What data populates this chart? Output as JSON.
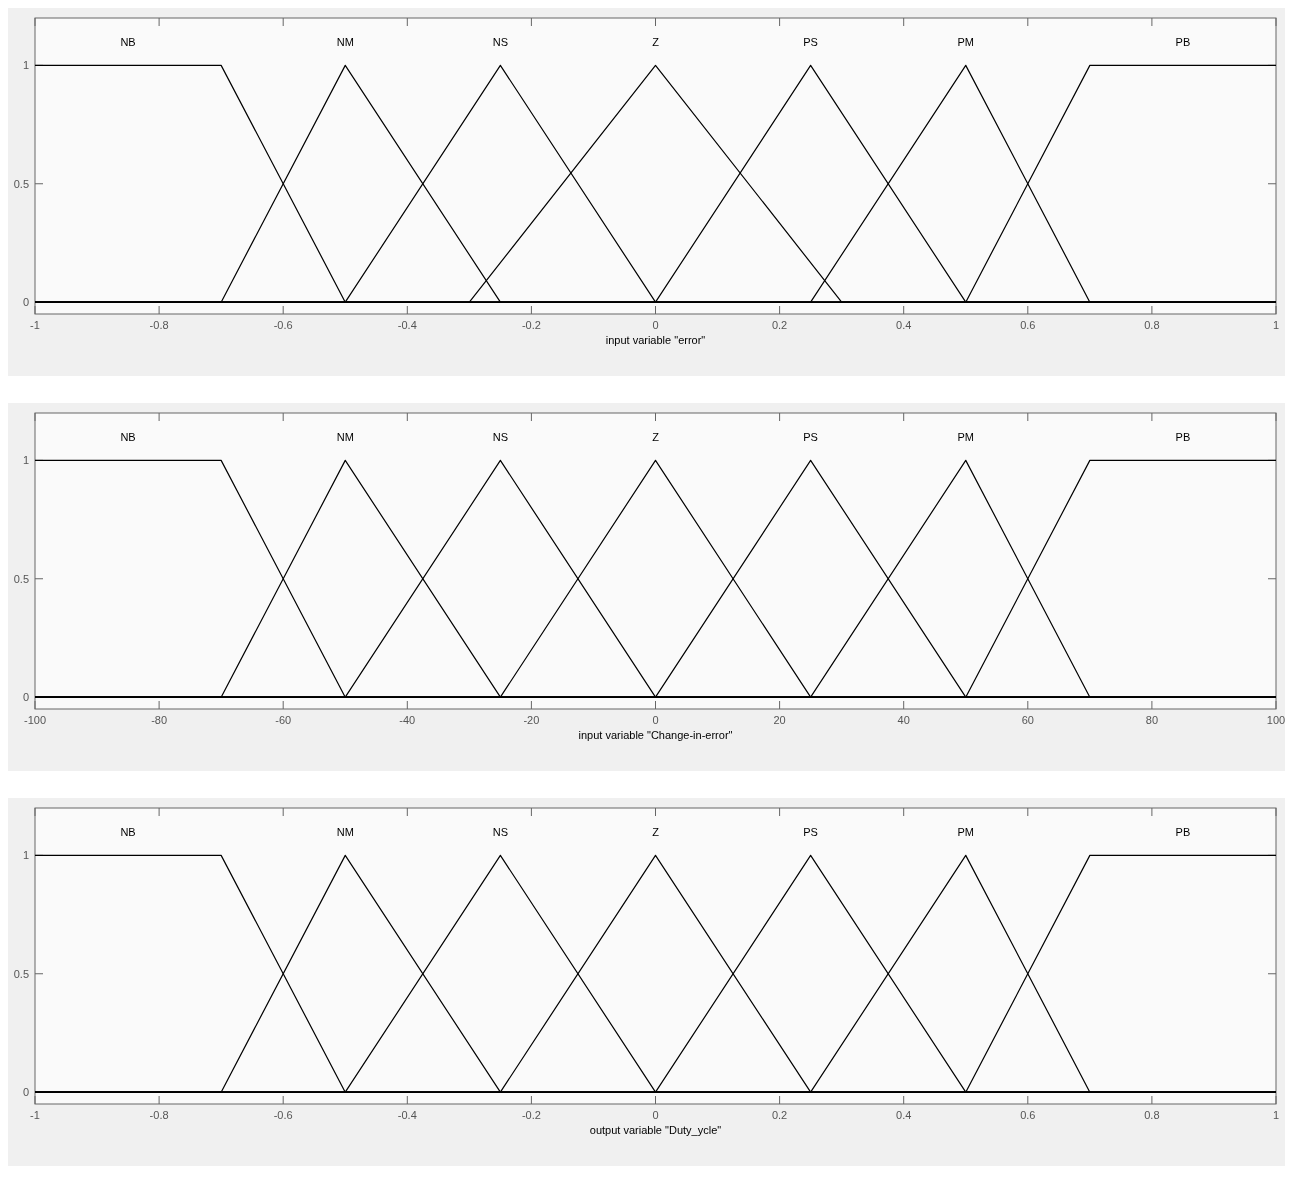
{
  "chart_data": [
    {
      "type": "line",
      "xlabel": "input variable \"error\"",
      "xlim": [
        -1,
        1
      ],
      "xticks": [
        -1,
        -0.8,
        -0.6,
        -0.4,
        -0.2,
        0,
        0.2,
        0.4,
        0.6,
        0.8,
        1
      ],
      "ylim": [
        -0.05,
        1.2
      ],
      "yticks": [
        0,
        0.5,
        1
      ],
      "grid": false,
      "marker": "none",
      "line_style": "solid",
      "series": [
        {
          "name": "NB",
          "color": "#000000",
          "x": [
            -1,
            -0.7,
            -0.5,
            1
          ],
          "values": [
            1,
            1,
            0,
            0
          ]
        },
        {
          "name": "NM",
          "color": "#000000",
          "x": [
            -1,
            -0.7,
            -0.5,
            -0.25,
            1
          ],
          "values": [
            0,
            0,
            1,
            0,
            0
          ]
        },
        {
          "name": "NS",
          "color": "#000000",
          "x": [
            -1,
            -0.5,
            -0.25,
            0,
            1
          ],
          "values": [
            0,
            0,
            1,
            0,
            0
          ]
        },
        {
          "name": "Z",
          "color": "#000000",
          "x": [
            -1,
            -0.3,
            0,
            0.3,
            1
          ],
          "values": [
            0,
            0,
            1,
            0,
            0
          ]
        },
        {
          "name": "PS",
          "color": "#000000",
          "x": [
            -1,
            0,
            0.25,
            0.5,
            1
          ],
          "values": [
            0,
            0,
            1,
            0,
            0
          ]
        },
        {
          "name": "PM",
          "color": "#000000",
          "x": [
            -1,
            0.25,
            0.5,
            0.7,
            1
          ],
          "values": [
            0,
            0,
            1,
            0,
            0
          ]
        },
        {
          "name": "PB",
          "color": "#000000",
          "x": [
            -1,
            0.5,
            0.7,
            1
          ],
          "values": [
            0,
            0,
            1,
            1
          ]
        }
      ]
    },
    {
      "type": "line",
      "xlabel": "input variable \"Change-in-error\"",
      "xlim": [
        -100,
        100
      ],
      "xticks": [
        -100,
        -80,
        -60,
        -40,
        -20,
        0,
        20,
        40,
        60,
        80,
        100
      ],
      "ylim": [
        -0.05,
        1.2
      ],
      "yticks": [
        0,
        0.5,
        1
      ],
      "grid": false,
      "marker": "none",
      "line_style": "solid",
      "series": [
        {
          "name": "NB",
          "color": "#000000",
          "x": [
            -100,
            -70,
            -50,
            100
          ],
          "values": [
            1,
            1,
            0,
            0
          ]
        },
        {
          "name": "NM",
          "color": "#000000",
          "x": [
            -100,
            -70,
            -50,
            -25,
            100
          ],
          "values": [
            0,
            0,
            1,
            0,
            0
          ]
        },
        {
          "name": "NS",
          "color": "#000000",
          "x": [
            -100,
            -50,
            -25,
            0,
            100
          ],
          "values": [
            0,
            0,
            1,
            0,
            0
          ]
        },
        {
          "name": "Z",
          "color": "#000000",
          "x": [
            -100,
            -25,
            0,
            25,
            100
          ],
          "values": [
            0,
            0,
            1,
            0,
            0
          ]
        },
        {
          "name": "PS",
          "color": "#000000",
          "x": [
            -100,
            0,
            25,
            50,
            100
          ],
          "values": [
            0,
            0,
            1,
            0,
            0
          ]
        },
        {
          "name": "PM",
          "color": "#000000",
          "x": [
            -100,
            25,
            50,
            70,
            100
          ],
          "values": [
            0,
            0,
            1,
            0,
            0
          ]
        },
        {
          "name": "PB",
          "color": "#000000",
          "x": [
            -100,
            50,
            70,
            100
          ],
          "values": [
            0,
            0,
            1,
            1
          ]
        }
      ]
    },
    {
      "type": "line",
      "xlabel": "output variable \"Duty_ycle\"",
      "xlim": [
        -1,
        1
      ],
      "xticks": [
        -1,
        -0.8,
        -0.6,
        -0.4,
        -0.2,
        0,
        0.2,
        0.4,
        0.6,
        0.8,
        1
      ],
      "ylim": [
        -0.05,
        1.2
      ],
      "yticks": [
        0,
        0.5,
        1
      ],
      "grid": false,
      "marker": "none",
      "line_style": "solid",
      "series": [
        {
          "name": "NB",
          "color": "#000000",
          "x": [
            -1,
            -0.7,
            -0.5,
            1
          ],
          "values": [
            1,
            1,
            0,
            0
          ]
        },
        {
          "name": "NM",
          "color": "#000000",
          "x": [
            -1,
            -0.7,
            -0.5,
            -0.25,
            1
          ],
          "values": [
            0,
            0,
            1,
            0,
            0
          ]
        },
        {
          "name": "NS",
          "color": "#000000",
          "x": [
            -1,
            -0.5,
            -0.25,
            0,
            1
          ],
          "values": [
            0,
            0,
            1,
            0,
            0
          ]
        },
        {
          "name": "Z",
          "color": "#000000",
          "x": [
            -1,
            -0.25,
            0,
            0.25,
            1
          ],
          "values": [
            0,
            0,
            1,
            0,
            0
          ]
        },
        {
          "name": "PS",
          "color": "#000000",
          "x": [
            -1,
            0,
            0.25,
            0.5,
            1
          ],
          "values": [
            0,
            0,
            1,
            0,
            0
          ]
        },
        {
          "name": "PM",
          "color": "#000000",
          "x": [
            -1,
            0.25,
            0.5,
            0.7,
            1
          ],
          "values": [
            0,
            0,
            1,
            0,
            0
          ]
        },
        {
          "name": "PB",
          "color": "#000000",
          "x": [
            -1,
            0.5,
            0.7,
            1
          ],
          "values": [
            0,
            0,
            1,
            1
          ]
        }
      ]
    }
  ]
}
